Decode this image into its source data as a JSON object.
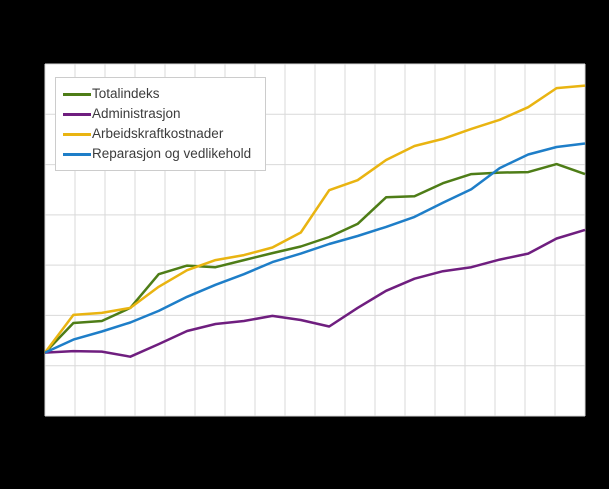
{
  "chart_data": {
    "type": "line",
    "title": "",
    "xlabel": "",
    "ylabel": "",
    "x": [
      1,
      2,
      3,
      4,
      5,
      6,
      7,
      8,
      9,
      10,
      11,
      12,
      13,
      14,
      15,
      16,
      17,
      18,
      19,
      20
    ],
    "series": [
      {
        "name": "Totalindeks",
        "color": "#4e7d17",
        "values": [
          100,
          105.9,
          106.3,
          108.9,
          115.6,
          117.3,
          117.0,
          118.4,
          119.8,
          121.1,
          123.0,
          125.6,
          130.9,
          131.1,
          133.7,
          135.5,
          135.8,
          135.9,
          137.5,
          135.5
        ]
      },
      {
        "name": "Administrasjon",
        "color": "#6f1e7f",
        "values": [
          100,
          100.3,
          100.2,
          99.2,
          101.7,
          104.3,
          105.7,
          106.3,
          107.3,
          106.5,
          105.2,
          108.9,
          112.3,
          114.7,
          116.2,
          117.0,
          118.5,
          119.7,
          122.7,
          124.4
        ]
      },
      {
        "name": "Arbeidskraftkostnader",
        "color": "#e9b411",
        "values": [
          100,
          107.5,
          107.9,
          108.9,
          113.1,
          116.4,
          118.4,
          119.4,
          120.9,
          123.9,
          132.3,
          134.3,
          138.3,
          141.1,
          142.5,
          144.5,
          146.3,
          148.8,
          152.6,
          153.1
        ]
      },
      {
        "name": "Reparasjon og vedlikehold",
        "color": "#1e7ec8",
        "values": [
          100,
          102.6,
          104.2,
          106.0,
          108.3,
          111.1,
          113.5,
          115.6,
          118.0,
          119.7,
          121.6,
          123.2,
          125.0,
          127.0,
          129.8,
          132.5,
          136.7,
          139.4,
          140.9,
          141.6
        ]
      }
    ],
    "ylim": [
      87.4,
      157.4
    ],
    "grid": "on",
    "x_gridline_count": 19,
    "y_gridline_count": 8,
    "legend_position": "top-left",
    "plot_background": "#ffffff",
    "outer_background": "#000000",
    "gridline_color": "#d9d9d9"
  },
  "legend": {
    "items": [
      {
        "label": "Totalindeks"
      },
      {
        "label": "Administrasjon"
      },
      {
        "label": "Arbeidskraftkostnader"
      },
      {
        "label": "Reparasjon og vedlikehold"
      }
    ]
  }
}
